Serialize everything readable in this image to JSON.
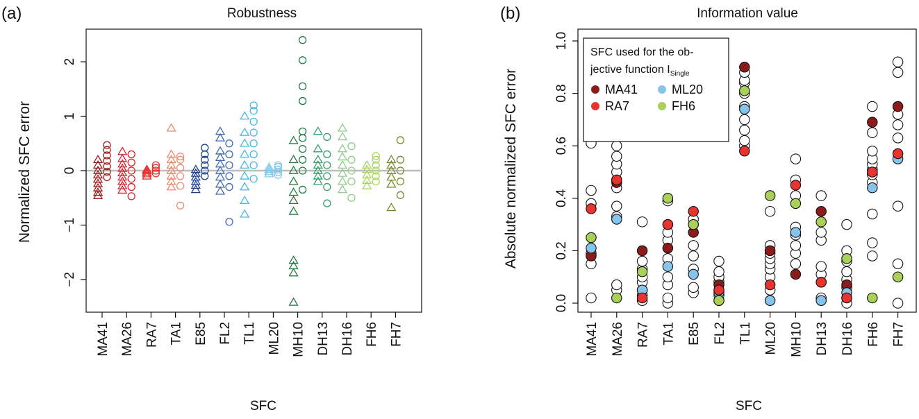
{
  "chart_data": [
    {
      "panel_label": "(a)",
      "type": "scatter",
      "title": "Robustness",
      "xlabel": "SFC",
      "ylabel": "Normalized SFC error",
      "categories": [
        "MA41",
        "MA26",
        "RA7",
        "TA1",
        "E85",
        "FL2",
        "TL1",
        "ML20",
        "MH10",
        "DH13",
        "DH16",
        "FH6",
        "FH7"
      ],
      "ylim": [
        -2.6,
        2.6
      ],
      "yticks": [
        -2,
        -1,
        0,
        1,
        2
      ],
      "reference_line": 0,
      "grid": false,
      "legend": "none",
      "marker_shapes": [
        "triangle",
        "circle"
      ],
      "category_colors": [
        "#9c1b1b",
        "#d4262d",
        "#e8332e",
        "#ec8a6e",
        "#1d3f8e",
        "#4169b4",
        "#48b7ea",
        "#7ec9ee",
        "#1f7a43",
        "#35a26a",
        "#8fcc88",
        "#a7d65a",
        "#6f8a2a"
      ],
      "series": [
        {
          "name": "",
          "marker": "triangle",
          "values": [
            [
              -0.46,
              -0.4,
              -0.32,
              -0.24,
              -0.16,
              -0.08,
              0.0,
              0.1,
              0.2
            ],
            [
              -0.36,
              -0.28,
              -0.2,
              -0.12,
              -0.04,
              0.04,
              0.12,
              0.22,
              0.35
            ],
            [
              -0.1,
              -0.06,
              -0.03,
              0.0,
              0.02
            ],
            [
              -0.3,
              -0.2,
              -0.1,
              0.0,
              0.1,
              0.2,
              0.3,
              0.78
            ],
            [
              -0.35,
              -0.27,
              -0.2,
              -0.12,
              -0.05,
              0.02
            ],
            [
              -0.38,
              -0.25,
              -0.12,
              0.0,
              0.12,
              0.24,
              0.36,
              0.6,
              0.72
            ],
            [
              -0.8,
              -0.55,
              -0.3,
              -0.1,
              0.1,
              0.3,
              0.5,
              0.7,
              1.0
            ],
            [
              -0.06,
              -0.02,
              0.02,
              0.06
            ],
            [
              -2.42,
              -1.88,
              -1.75,
              -1.65,
              -0.75,
              -0.55,
              -0.4,
              -0.2,
              0.0,
              0.2,
              0.55
            ],
            [
              -0.2,
              -0.1,
              0.0,
              0.1,
              0.2,
              0.4,
              0.72
            ],
            [
              -0.35,
              -0.2,
              -0.05,
              0.1,
              0.25,
              0.4,
              0.62,
              0.78
            ],
            [
              -0.28,
              -0.18,
              -0.08,
              0.02,
              0.1
            ],
            [
              -0.68,
              -0.25,
              -0.12,
              0.0,
              0.1,
              0.2
            ]
          ]
        },
        {
          "name": "",
          "marker": "circle",
          "values": [
            [
              -0.12,
              -0.02,
              0.08,
              0.18,
              0.28,
              0.38,
              0.47
            ],
            [
              -0.47,
              -0.3,
              -0.15,
              0.0,
              0.15,
              0.3
            ],
            [
              -0.05,
              0.0,
              0.05,
              0.1
            ],
            [
              -0.64,
              -0.28,
              -0.1,
              0.05,
              0.2,
              0.26
            ],
            [
              -0.1,
              0.0,
              0.1,
              0.2,
              0.3,
              0.42
            ],
            [
              -0.94,
              -0.3,
              -0.1,
              0.1,
              0.3,
              0.5
            ],
            [
              -0.15,
              0.1,
              0.3,
              0.5,
              0.7,
              0.9,
              1.1,
              1.2
            ],
            [
              -0.08,
              -0.03,
              0.02,
              0.07,
              0.1
            ],
            [
              -0.35,
              0.0,
              0.2,
              0.4,
              0.6,
              0.72,
              1.28,
              1.55,
              2.03,
              2.4
            ],
            [
              -0.6,
              -0.3,
              -0.1,
              0.1,
              0.3,
              0.62
            ],
            [
              -0.5,
              -0.2,
              0.0,
              0.2,
              0.45
            ],
            [
              -0.2,
              -0.1,
              0.0,
              0.1,
              0.2,
              0.27
            ],
            [
              -0.45,
              -0.2,
              0.0,
              0.2,
              0.56
            ]
          ]
        }
      ]
    },
    {
      "panel_label": "(b)",
      "type": "scatter",
      "title": "Information value",
      "xlabel": "SFC",
      "ylabel": "Absolute normalized SFC error",
      "categories": [
        "MA41",
        "MA26",
        "RA7",
        "TA1",
        "E85",
        "FL2",
        "TL1",
        "ML20",
        "MH10",
        "DH13",
        "DH16",
        "FH6",
        "FH7"
      ],
      "ylim": [
        0,
        1
      ],
      "yticks": [
        0.0,
        0.2,
        0.4,
        0.6,
        0.8,
        1.0
      ],
      "grid": false,
      "legend": {
        "placement": "top-left",
        "title_line1": "SFC used for the ob-",
        "title_line2": "jective function I",
        "title_subscript": "Single",
        "entries": [
          {
            "label": "MA41",
            "color": "#8b1a1a"
          },
          {
            "label": "ML20",
            "color": "#87c4ec"
          },
          {
            "label": "RA7",
            "color": "#e8332e"
          },
          {
            "label": "FH6",
            "color": "#a9d059"
          }
        ]
      },
      "series": [
        {
          "name": "",
          "color": "#ffffff",
          "values": [
            [
              0.02,
              0.15,
              0.19,
              0.38,
              0.43,
              0.61
            ],
            [
              0.05,
              0.07,
              0.33,
              0.37,
              0.44,
              0.47,
              0.5,
              0.53,
              0.56,
              0.6
            ],
            [
              0.01,
              0.03,
              0.05,
              0.08,
              0.1,
              0.13,
              0.16,
              0.31
            ],
            [
              0.0,
              0.02,
              0.07,
              0.1,
              0.17,
              0.24,
              0.27,
              0.3,
              0.39
            ],
            [
              0.04,
              0.06,
              0.13,
              0.18,
              0.22,
              0.3,
              0.32
            ],
            [
              0.01,
              0.03,
              0.05,
              0.08,
              0.1,
              0.12,
              0.16
            ],
            [
              0.6,
              0.62,
              0.66,
              0.7,
              0.75,
              0.8,
              0.84,
              0.85,
              0.88
            ],
            [
              0.05,
              0.1,
              0.13,
              0.15,
              0.17,
              0.19,
              0.22,
              0.35
            ],
            [
              0.15,
              0.19,
              0.22,
              0.26,
              0.29,
              0.41,
              0.47,
              0.55
            ],
            [
              0.02,
              0.08,
              0.11,
              0.14,
              0.24,
              0.27,
              0.41
            ],
            [
              0.0,
              0.02,
              0.06,
              0.09,
              0.12,
              0.16,
              0.2,
              0.3
            ],
            [
              0.18,
              0.23,
              0.34,
              0.46,
              0.49,
              0.51,
              0.53,
              0.55,
              0.58,
              0.65,
              0.75
            ],
            [
              0.0,
              0.15,
              0.37,
              0.63,
              0.68,
              0.72,
              0.88,
              0.92
            ]
          ]
        },
        {
          "name": "MA41",
          "color": "#8b1a1a",
          "values": [
            [
              0.18
            ],
            [
              0.46
            ],
            [
              0.2
            ],
            [
              0.21
            ],
            [
              0.27
            ],
            [
              0.07
            ],
            [
              0.9
            ],
            [
              0.2
            ],
            [
              0.11
            ],
            [
              0.35
            ],
            [
              0.07
            ],
            [
              0.69
            ],
            [
              0.75
            ]
          ]
        },
        {
          "name": "ML20",
          "color": "#87c4ec",
          "values": [
            [
              0.21
            ],
            [
              0.32
            ],
            [
              0.05
            ],
            [
              0.14
            ],
            [
              0.11
            ],
            [
              0.04
            ],
            [
              0.74
            ],
            [
              0.01
            ],
            [
              0.27
            ],
            [
              0.01
            ],
            [
              0.04
            ],
            [
              0.44
            ],
            [
              0.55
            ]
          ]
        },
        {
          "name": "RA7",
          "color": "#e8332e",
          "values": [
            [
              0.36
            ],
            [
              0.47
            ],
            [
              0.02
            ],
            [
              0.3
            ],
            [
              0.35
            ],
            [
              0.05
            ],
            [
              0.58
            ],
            [
              0.07
            ],
            [
              0.45
            ],
            [
              0.08
            ],
            [
              0.02
            ],
            [
              0.5
            ],
            [
              0.57
            ]
          ]
        },
        {
          "name": "FH6",
          "color": "#a9d059",
          "values": [
            [
              0.25
            ],
            [
              0.02
            ],
            [
              0.12
            ],
            [
              0.4
            ],
            [
              0.3
            ],
            [
              0.01
            ],
            [
              0.81
            ],
            [
              0.41
            ],
            [
              0.38
            ],
            [
              0.31
            ],
            [
              0.17
            ],
            [
              0.02
            ],
            [
              0.1
            ]
          ]
        }
      ]
    }
  ]
}
